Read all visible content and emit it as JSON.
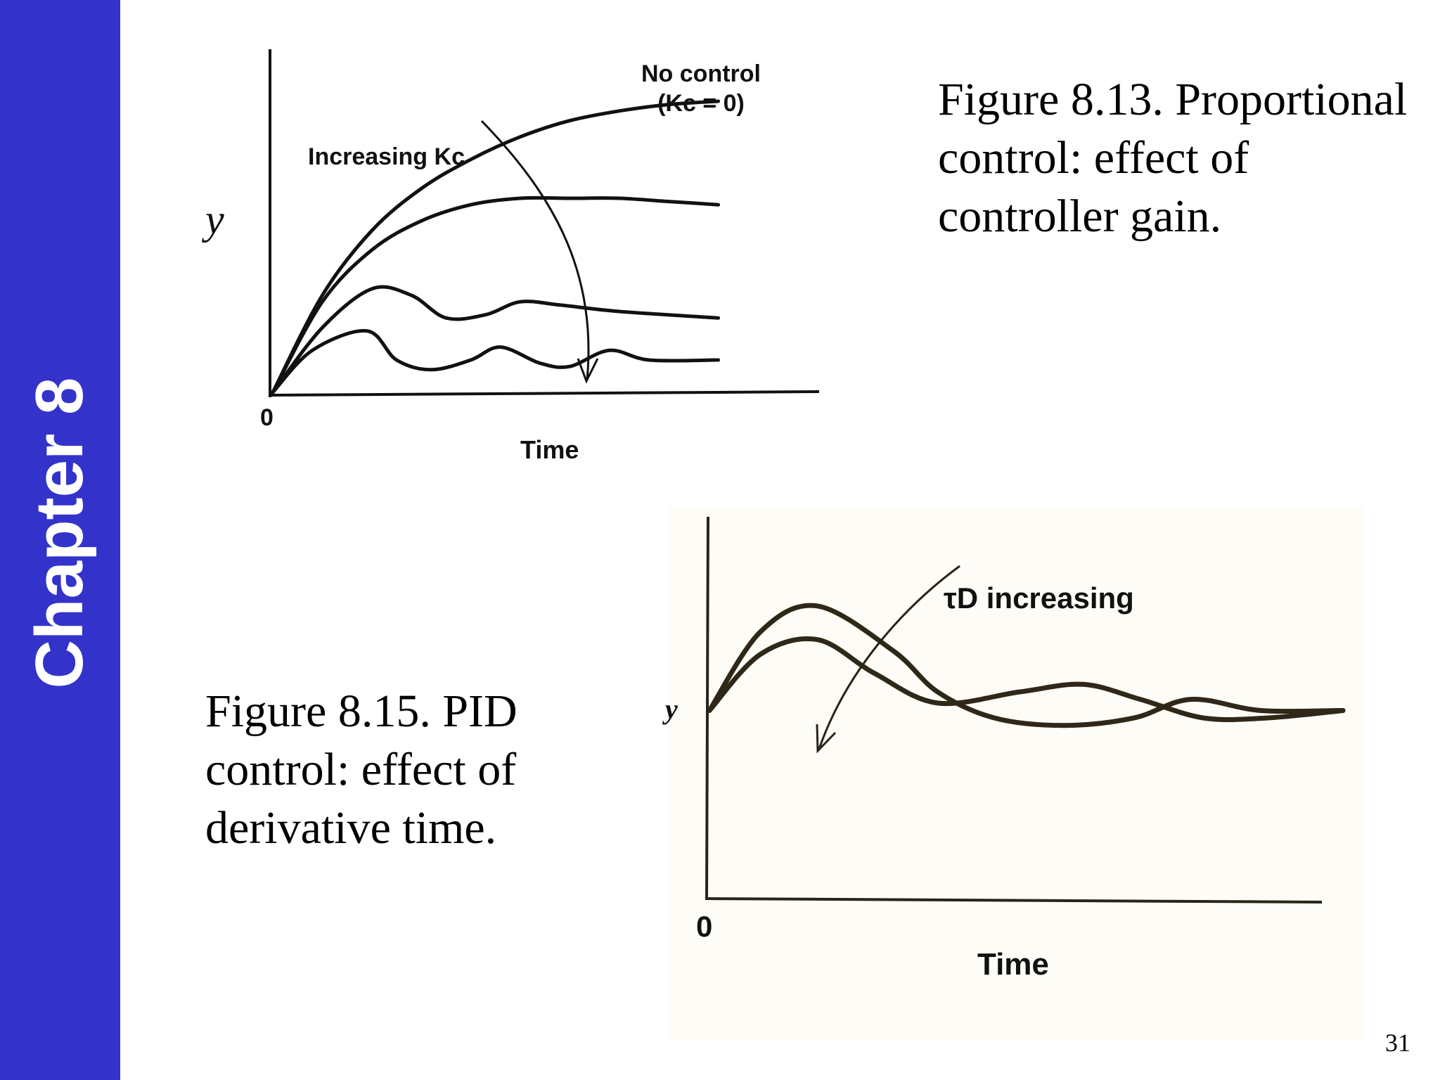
{
  "sidebar": {
    "label": "Chapter 8",
    "color": "#3333cc"
  },
  "page_number": "31",
  "captions": {
    "fig813": "Figure 8.13. Proportional control: effect of controller gain.",
    "fig815": "Figure 8.15. PID control: effect of derivative time."
  },
  "chart_data": [
    {
      "type": "line",
      "xlabel": "Time",
      "ylabel": "y",
      "origin_label": "0",
      "annotations": {
        "no_control": "No control",
        "no_control_kc": "(Kc = 0)",
        "arrow_label": "Increasing Kc"
      },
      "xlim": [
        0,
        10
      ],
      "ylim": [
        0,
        1
      ],
      "series": [
        {
          "values": [
            [
              0,
              0
            ],
            [
              1,
              0.3
            ],
            [
              2,
              0.5
            ],
            [
              3,
              0.63
            ],
            [
              4,
              0.72
            ],
            [
              5,
              0.79
            ],
            [
              6,
              0.84
            ],
            [
              7,
              0.87
            ],
            [
              8,
              0.89
            ],
            [
              9,
              0.9
            ]
          ]
        },
        {
          "values": [
            [
              0,
              0
            ],
            [
              1,
              0.28
            ],
            [
              2,
              0.44
            ],
            [
              3,
              0.53
            ],
            [
              4,
              0.58
            ],
            [
              5,
              0.6
            ],
            [
              6,
              0.6
            ],
            [
              7,
              0.6
            ],
            [
              8,
              0.59
            ],
            [
              9,
              0.58
            ]
          ]
        },
        {
          "values": [
            [
              0,
              0
            ],
            [
              1,
              0.2
            ],
            [
              2,
              0.32
            ],
            [
              2.8,
              0.3
            ],
            [
              3.5,
              0.23
            ],
            [
              4.3,
              0.24
            ],
            [
              5,
              0.28
            ],
            [
              5.8,
              0.27
            ],
            [
              7,
              0.25
            ],
            [
              9,
              0.23
            ]
          ]
        },
        {
          "values": [
            [
              0,
              0
            ],
            [
              0.8,
              0.13
            ],
            [
              1.9,
              0.19
            ],
            [
              2.5,
              0.1
            ],
            [
              3.2,
              0.07
            ],
            [
              4,
              0.1
            ],
            [
              4.6,
              0.14
            ],
            [
              5.4,
              0.09
            ],
            [
              6,
              0.08
            ],
            [
              6.8,
              0.13
            ],
            [
              7.6,
              0.1
            ],
            [
              9,
              0.1
            ]
          ]
        }
      ]
    },
    {
      "type": "line",
      "xlabel": "Time",
      "ylabel": "y",
      "origin_label": "0",
      "annotations": {
        "arrow_label": "τD increasing"
      },
      "xlim": [
        0,
        10
      ],
      "ylim": [
        0,
        1
      ],
      "series": [
        {
          "values": [
            [
              0,
              0.5
            ],
            [
              0.8,
              0.71
            ],
            [
              1.7,
              0.78
            ],
            [
              2.9,
              0.66
            ],
            [
              3.6,
              0.55
            ],
            [
              4.5,
              0.48
            ],
            [
              5.6,
              0.46
            ],
            [
              6.7,
              0.48
            ],
            [
              7.6,
              0.53
            ],
            [
              8.7,
              0.5
            ],
            [
              10,
              0.5
            ]
          ]
        },
        {
          "values": [
            [
              0,
              0.5
            ],
            [
              0.8,
              0.65
            ],
            [
              1.7,
              0.69
            ],
            [
              2.6,
              0.6
            ],
            [
              3.6,
              0.52
            ],
            [
              4.9,
              0.55
            ],
            [
              5.9,
              0.57
            ],
            [
              6.8,
              0.53
            ],
            [
              7.8,
              0.48
            ],
            [
              8.8,
              0.48
            ],
            [
              10,
              0.5
            ]
          ]
        }
      ]
    }
  ]
}
